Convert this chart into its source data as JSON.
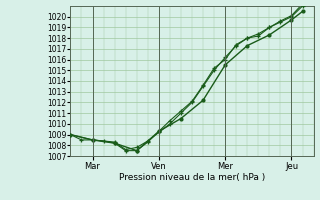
{
  "bg_color": "#c8e8d8",
  "plot_bg_color": "#d8f0e8",
  "grid_color": "#a0c8a0",
  "line_color": "#1a5c1a",
  "xlabel": "Pression niveau de la mer( hPa )",
  "ylim": [
    1007,
    1021
  ],
  "yticks": [
    1007,
    1008,
    1009,
    1010,
    1011,
    1012,
    1013,
    1014,
    1015,
    1016,
    1017,
    1018,
    1019,
    1020
  ],
  "xtick_labels": [
    "Mar",
    "Ven",
    "Mer",
    "Jeu"
  ],
  "xtick_positions": [
    24,
    96,
    168,
    240
  ],
  "xlim": [
    0,
    264
  ],
  "series1_x": [
    0,
    12,
    24,
    36,
    48,
    60,
    72,
    84,
    96,
    108,
    120,
    132,
    144,
    156,
    168,
    180,
    192,
    204,
    216,
    228,
    240,
    252
  ],
  "series1_y": [
    1009.0,
    1008.5,
    1008.5,
    1008.4,
    1008.2,
    1007.5,
    1007.5,
    1008.3,
    1009.3,
    1010.3,
    1011.2,
    1012.1,
    1013.6,
    1015.2,
    1016.0,
    1017.4,
    1018.0,
    1018.2,
    1019.0,
    1019.5,
    1020.0,
    1021.0
  ],
  "series2_x": [
    0,
    24,
    48,
    72,
    96,
    120,
    144,
    168,
    192,
    216,
    240,
    252
  ],
  "series2_y": [
    1009.0,
    1008.5,
    1008.2,
    1007.5,
    1009.3,
    1010.5,
    1012.2,
    1015.5,
    1017.3,
    1018.3,
    1019.7,
    1020.5
  ],
  "series3_x": [
    0,
    24,
    48,
    60,
    72,
    84,
    96,
    108,
    120,
    132,
    144,
    156,
    168,
    180,
    192,
    204,
    216,
    228,
    240,
    252
  ],
  "series3_y": [
    1009.0,
    1008.5,
    1008.3,
    1007.6,
    1007.8,
    1008.4,
    1009.2,
    1010.0,
    1011.0,
    1012.0,
    1013.5,
    1015.0,
    1016.2,
    1017.3,
    1018.0,
    1018.4,
    1019.0,
    1019.6,
    1020.1,
    1021.2
  ]
}
